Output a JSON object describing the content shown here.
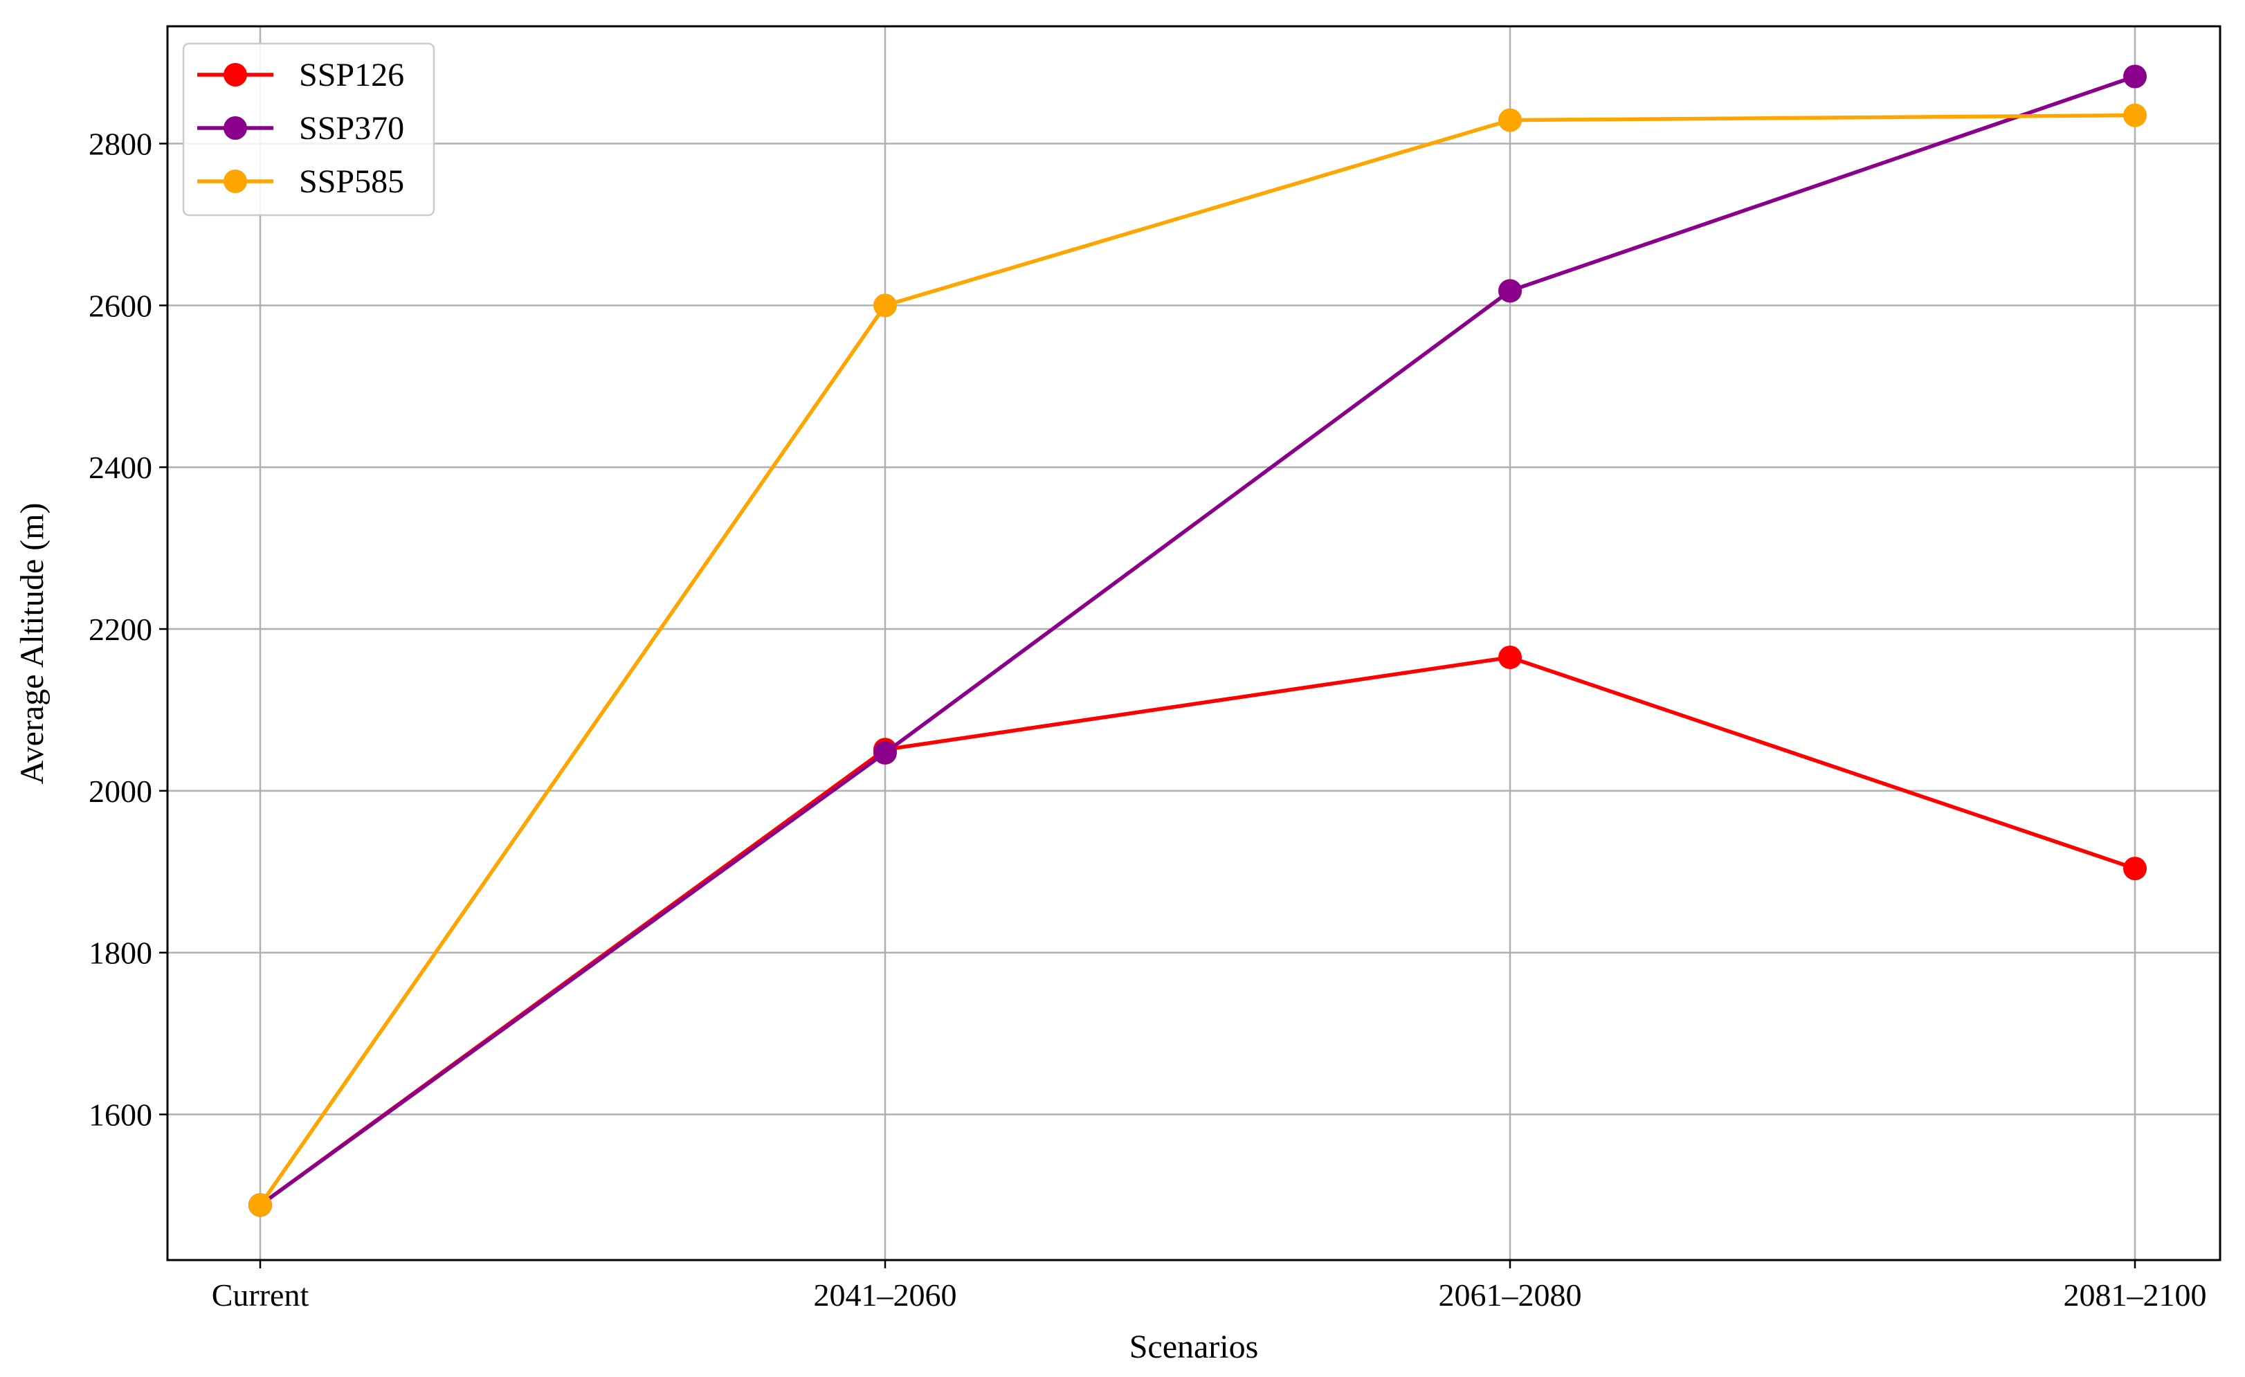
{
  "chart_data": {
    "type": "line",
    "title": "",
    "xlabel": "Scenarios",
    "ylabel": "Average Altitude (m)",
    "categories": [
      "Current",
      "2041–2060",
      "2061–2080",
      "2081–2100"
    ],
    "ylim": [
      1420,
      2945
    ],
    "yticks": [
      1600,
      1800,
      2000,
      2200,
      2400,
      2600,
      2800
    ],
    "grid": true,
    "legend_position": "top-left",
    "series": [
      {
        "name": "SSP126",
        "color": "#ff0000",
        "values": [
          1488,
          2051,
          2165,
          1904
        ]
      },
      {
        "name": "SSP370",
        "color": "#8b008b",
        "values": [
          1488,
          2047,
          2618,
          2883
        ]
      },
      {
        "name": "SSP585",
        "color": "#ffa500",
        "values": [
          1488,
          2600,
          2829,
          2835
        ]
      }
    ]
  }
}
